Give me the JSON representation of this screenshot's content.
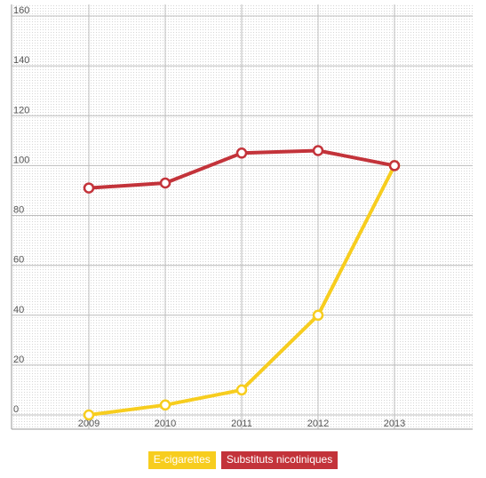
{
  "chart_data": {
    "type": "line",
    "x": [
      "2009",
      "2010",
      "2011",
      "2012",
      "2013"
    ],
    "series": [
      {
        "name": "E-cigarettes",
        "color": "#f7cd1e",
        "values": [
          0,
          4,
          10,
          40,
          100
        ]
      },
      {
        "name": "Substituts nicotiniques",
        "color": "#c3333a",
        "values": [
          91,
          93,
          105,
          106,
          100
        ]
      }
    ],
    "yticks": [
      "0",
      "20",
      "40",
      "60",
      "80",
      "100",
      "120",
      "140",
      "160"
    ],
    "ylim": [
      0,
      160
    ],
    "grid": true,
    "legend_position": "bottom-center",
    "title": "",
    "xlabel": "",
    "ylabel": ""
  }
}
